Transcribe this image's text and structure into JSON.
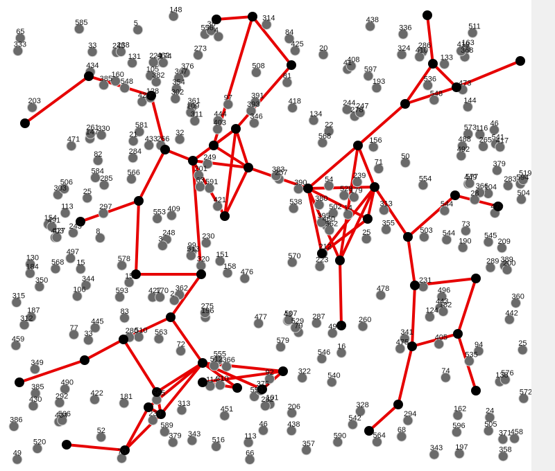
{
  "colors": {
    "background": "#ffffff",
    "node": "#6a6a6a",
    "node_outline": "#d0d0d0",
    "highlighted_node": "#000000",
    "edge": "#e60000",
    "right_strip": "#f0f0f0"
  },
  "labels": [
    "187",
    "138",
    "555",
    "443",
    "243",
    "5",
    "508",
    "209",
    "330",
    "420",
    "566",
    "41",
    "475",
    "479",
    "516",
    "147",
    "564",
    "278",
    "273",
    "158",
    "361",
    "151",
    "54",
    "510",
    "71",
    "63",
    "77",
    "324",
    "46",
    "249",
    "285",
    "297",
    "283",
    "336",
    "261",
    "404",
    "341",
    "458",
    "570",
    "49",
    "563",
    "82",
    "8",
    "128",
    "79",
    "104",
    "390",
    "260",
    "25",
    "427",
    "286",
    "343",
    "248",
    "386",
    "346",
    "52",
    "538",
    "408",
    "266",
    "148",
    "144",
    "410",
    "313",
    "389",
    "15",
    "163",
    "287",
    "101",
    "578",
    "445",
    "497",
    "425",
    "478",
    "223",
    "131",
    "303",
    "311",
    "313",
    "322",
    "496",
    "156",
    "476",
    "294",
    "473",
    "73",
    "438",
    "265",
    "113",
    "488",
    "556",
    "550",
    "366",
    "200",
    "230",
    "520",
    "193",
    "284",
    "20",
    "596",
    "548",
    "545",
    "105",
    "409",
    "504",
    "568",
    "22",
    "449",
    "430",
    "106",
    "451",
    "81",
    "536",
    "422",
    "257",
    "360",
    "383",
    "442",
    "355",
    "50",
    "591",
    "33",
    "38",
    "282",
    "492",
    "32",
    "133",
    "109",
    "403",
    "21",
    "302",
    "581",
    "541",
    "375",
    "572",
    "471",
    "68",
    "385",
    "376",
    "490",
    "65",
    "94",
    "33",
    "154",
    "245",
    "460",
    "589",
    "417",
    "535",
    "368",
    "201",
    "358",
    "553",
    "25",
    "597",
    "593",
    "196",
    "594",
    "421",
    "502",
    "66",
    "43",
    "83",
    "379",
    "548",
    "4",
    "315",
    "333",
    "433",
    "505",
    "371",
    "512",
    "238",
    "184",
    "292",
    "74",
    "503",
    "444",
    "328",
    "405",
    "419",
    "206",
    "573",
    "565",
    "239",
    "568",
    "24",
    "546",
    "46",
    "566",
    "366",
    "491",
    "14",
    "84",
    "179",
    "212",
    "181",
    "310",
    "542",
    "579",
    "459",
    "462",
    "529",
    "197",
    "506",
    "350",
    "380",
    "362",
    "72",
    "92",
    "312",
    "134",
    "585",
    "391",
    "528",
    "507",
    "511",
    "344",
    "244",
    "385",
    "343",
    "403",
    "190",
    "395",
    "97",
    "314",
    "379",
    "498",
    "544",
    "590",
    "280",
    "382",
    "477",
    "275",
    "114",
    "170",
    "116",
    "357",
    "584",
    "320",
    "162",
    "552",
    "438",
    "554",
    "99",
    "577",
    "3",
    "427",
    "393",
    "124",
    "224",
    "113",
    "203",
    "28",
    "239",
    "130",
    "354",
    "160",
    "367",
    "544",
    "434",
    "418",
    "576",
    "16",
    "15",
    "513",
    "247",
    "519",
    "182",
    "231",
    "174",
    "349",
    "70",
    "289",
    "540",
    "2",
    "25"
  ]
}
